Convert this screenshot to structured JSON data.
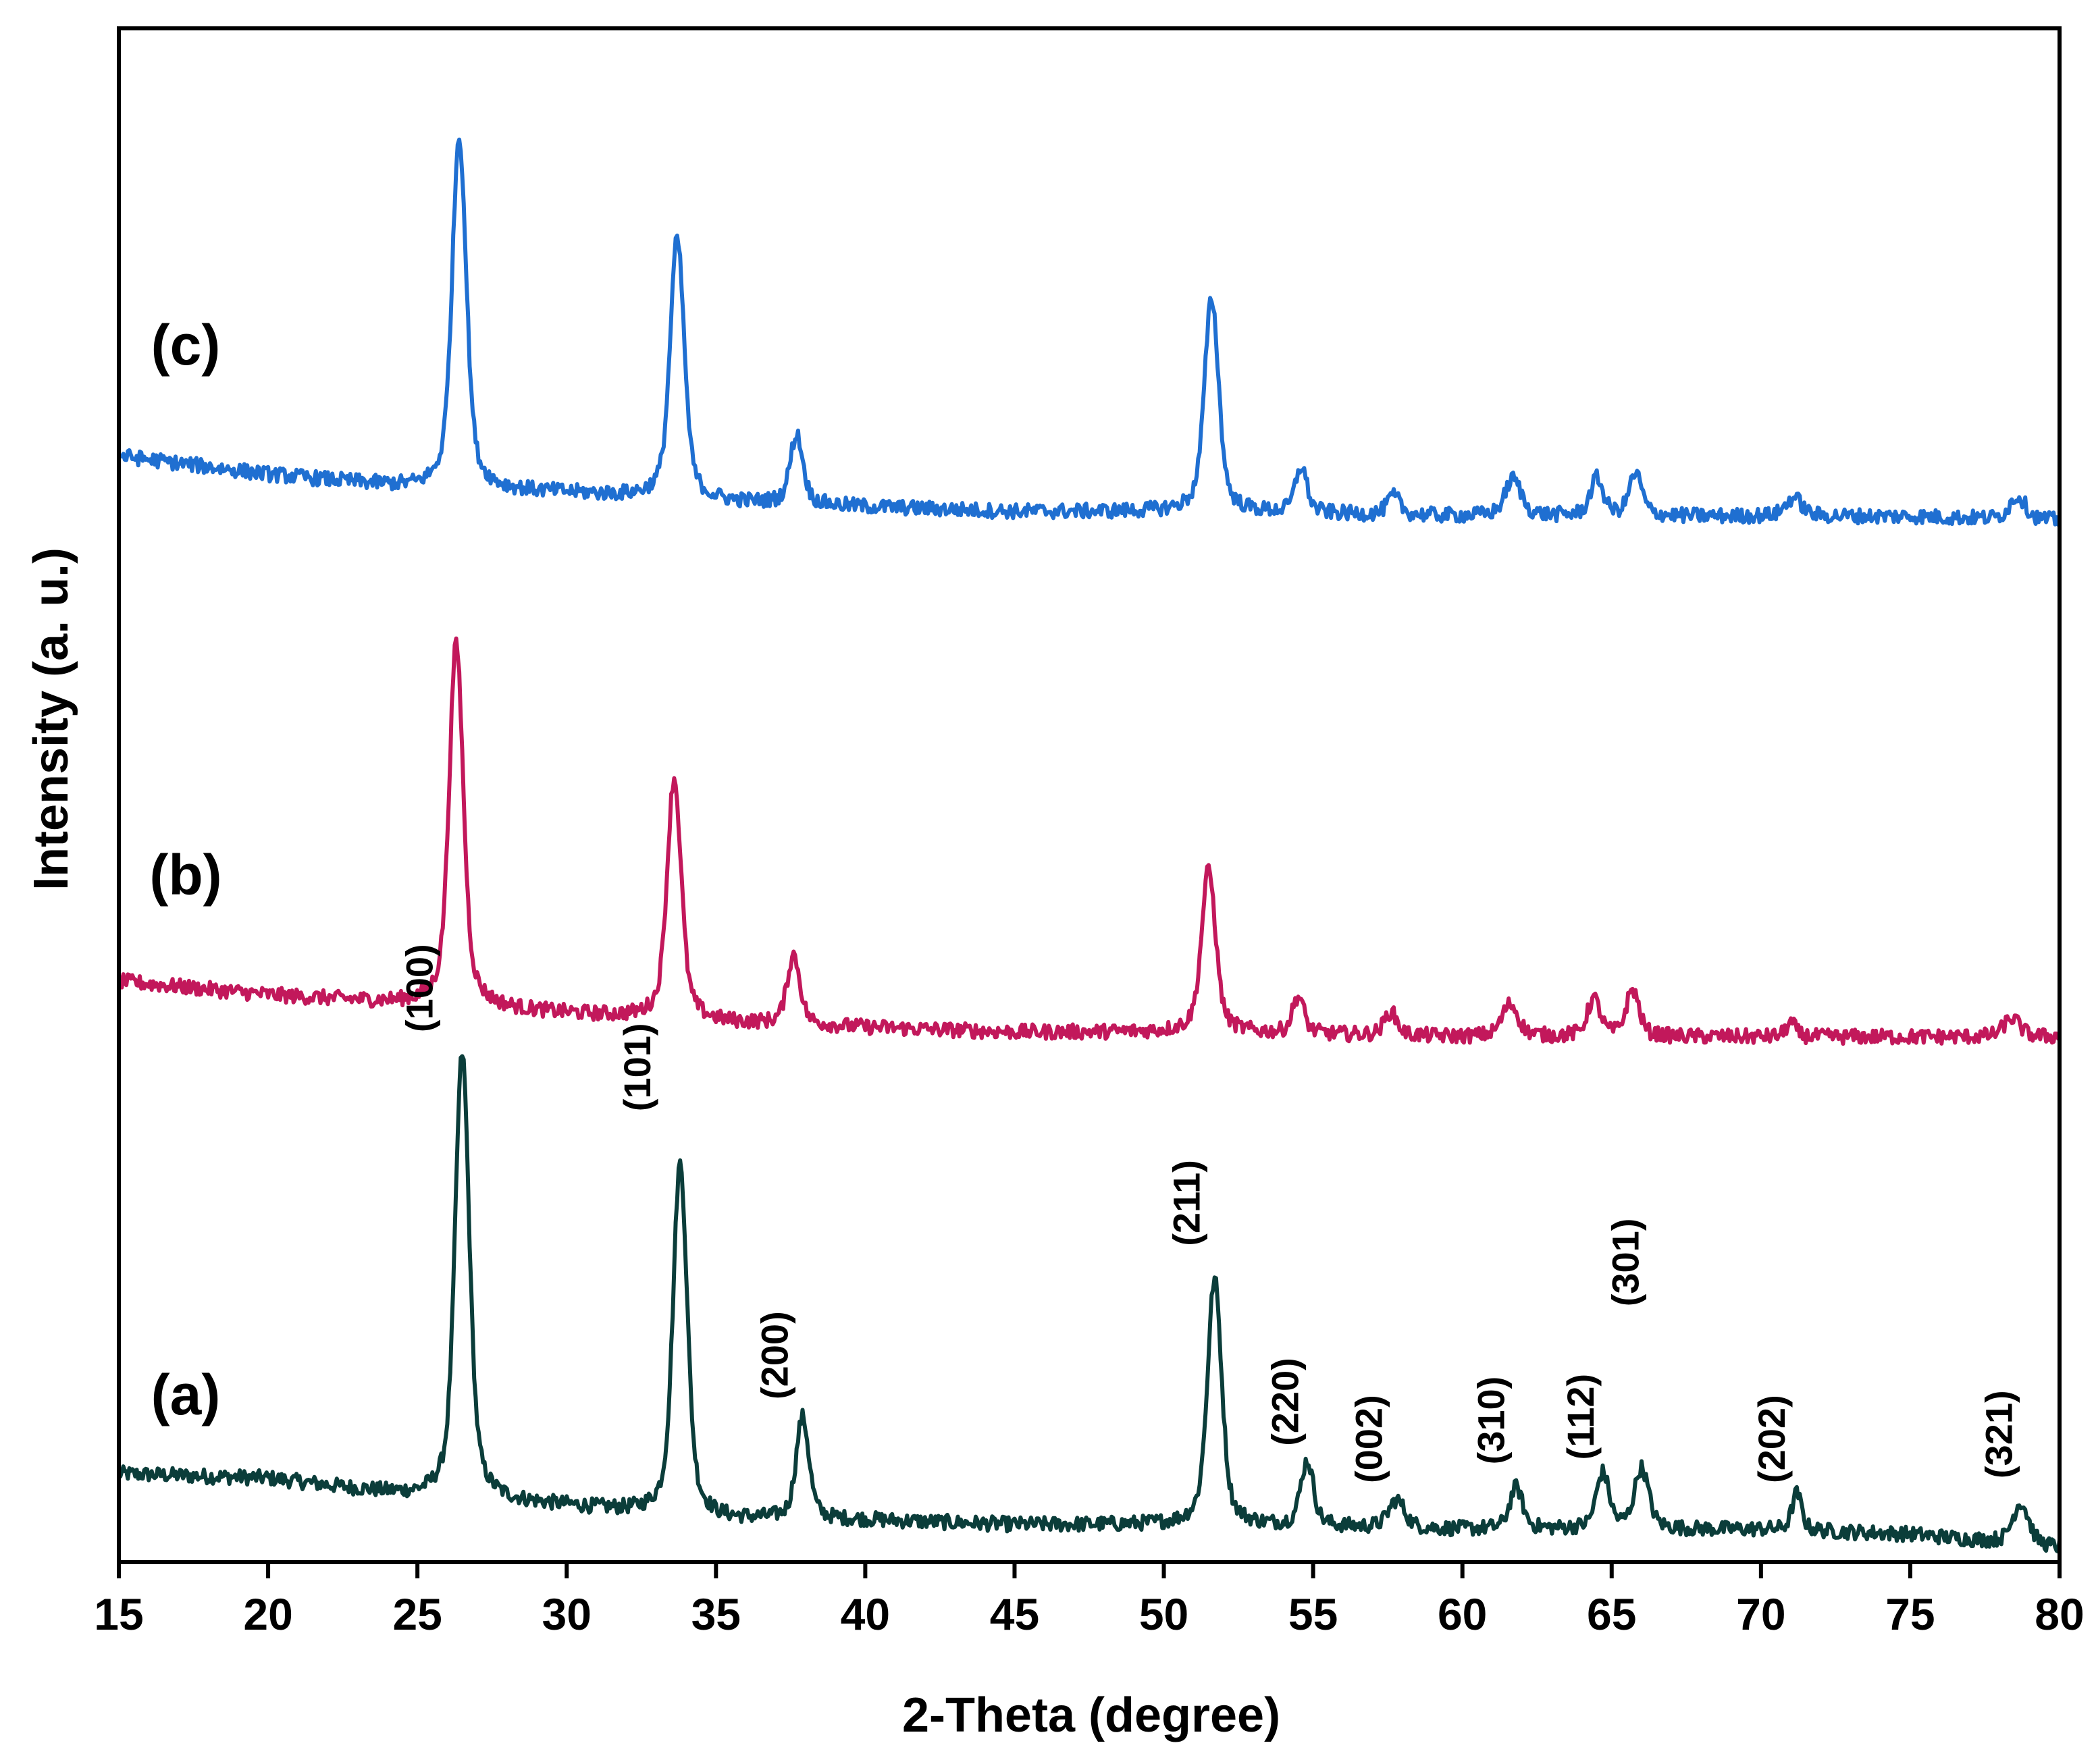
{
  "chart_data": {
    "type": "line",
    "title": "",
    "xlabel": "2-Theta (degree)",
    "ylabel": "Intensity (a. u.)",
    "xlim": [
      15,
      80
    ],
    "ylim": [
      0,
      33
    ],
    "xticks": [
      "15",
      "20",
      "25",
      "30",
      "35",
      "40",
      "45",
      "50",
      "55",
      "60",
      "65",
      "70",
      "75",
      "80"
    ],
    "yticks_shown": false,
    "grid": false,
    "legend": "none",
    "series": [
      {
        "label": "(a)",
        "color": "#0b3d3a",
        "baseline": {
          "x": [
            15,
            20,
            25,
            30,
            35,
            40,
            45,
            50,
            55,
            60,
            65,
            70,
            75,
            80
          ],
          "y": [
            1.9,
            1.8,
            1.4,
            1.2,
            0.9,
            0.9,
            0.8,
            0.8,
            0.75,
            0.7,
            0.7,
            0.7,
            0.6,
            0.3
          ]
        },
        "peaks": [
          {
            "x": 26.5,
            "height": 9.6,
            "width": 0.22
          },
          {
            "x": 33.8,
            "height": 7.6,
            "width": 0.22
          },
          {
            "x": 37.9,
            "height": 2.2,
            "width": 0.2
          },
          {
            "x": 51.7,
            "height": 5.3,
            "width": 0.22
          },
          {
            "x": 54.8,
            "height": 1.4,
            "width": 0.2
          },
          {
            "x": 57.8,
            "height": 0.6,
            "width": 0.25
          },
          {
            "x": 61.8,
            "height": 0.9,
            "width": 0.2
          },
          {
            "x": 64.7,
            "height": 1.2,
            "width": 0.2
          },
          {
            "x": 66.0,
            "height": 1.3,
            "width": 0.22
          },
          {
            "x": 71.2,
            "height": 0.8,
            "width": 0.15
          },
          {
            "x": 78.7,
            "height": 0.9,
            "width": 0.25
          }
        ]
      },
      {
        "label": "(b)",
        "color": "#c2185b",
        "baseline": {
          "x": [
            15,
            20,
            25,
            30,
            35,
            40,
            45,
            50,
            55,
            60,
            65,
            70,
            75,
            80
          ],
          "y": [
            12.5,
            12.2,
            12.0,
            11.8,
            11.6,
            11.5,
            11.4,
            11.4,
            11.35,
            11.3,
            11.3,
            11.3,
            11.3,
            11.3
          ]
        },
        "peaks": [
          {
            "x": 26.3,
            "height": 7.8,
            "width": 0.22
          },
          {
            "x": 33.6,
            "height": 5.2,
            "width": 0.22
          },
          {
            "x": 37.6,
            "height": 1.5,
            "width": 0.2
          },
          {
            "x": 51.5,
            "height": 3.5,
            "width": 0.22
          },
          {
            "x": 54.5,
            "height": 0.8,
            "width": 0.18
          },
          {
            "x": 57.6,
            "height": 0.5,
            "width": 0.2
          },
          {
            "x": 61.6,
            "height": 0.7,
            "width": 0.25
          },
          {
            "x": 64.4,
            "height": 0.8,
            "width": 0.2
          },
          {
            "x": 65.7,
            "height": 1.0,
            "width": 0.2
          },
          {
            "x": 71.0,
            "height": 0.3,
            "width": 0.15
          },
          {
            "x": 78.4,
            "height": 0.4,
            "width": 0.25
          }
        ]
      },
      {
        "label": "(c)",
        "color": "#1f6fd1",
        "baseline": {
          "x": [
            15,
            20,
            25,
            30,
            35,
            40,
            45,
            50,
            55,
            60,
            65,
            70,
            75,
            80
          ],
          "y": [
            23.8,
            23.4,
            23.1,
            23.0,
            22.8,
            22.7,
            22.6,
            22.6,
            22.55,
            22.5,
            22.5,
            22.5,
            22.5,
            22.4
          ]
        },
        "peaks": [
          {
            "x": 26.4,
            "height": 7.6,
            "width": 0.22
          },
          {
            "x": 33.7,
            "height": 5.6,
            "width": 0.22
          },
          {
            "x": 37.7,
            "height": 1.5,
            "width": 0.2
          },
          {
            "x": 51.6,
            "height": 4.6,
            "width": 0.22
          },
          {
            "x": 54.6,
            "height": 1.0,
            "width": 0.18
          },
          {
            "x": 57.7,
            "height": 0.4,
            "width": 0.2
          },
          {
            "x": 61.7,
            "height": 0.8,
            "width": 0.25
          },
          {
            "x": 64.5,
            "height": 0.8,
            "width": 0.2
          },
          {
            "x": 65.8,
            "height": 0.9,
            "width": 0.2
          },
          {
            "x": 71.1,
            "height": 0.4,
            "width": 0.25
          },
          {
            "x": 78.6,
            "height": 0.5,
            "width": 0.25
          }
        ]
      }
    ],
    "annotations": [
      {
        "text": "(100)",
        "x": 25.5,
        "y": 11.4
      },
      {
        "text": "(101)",
        "x": 32.8,
        "y": 9.7
      },
      {
        "text": "(200)",
        "x": 37.4,
        "y": 3.5
      },
      {
        "text": "(211)",
        "x": 51.2,
        "y": 6.8
      },
      {
        "text": "(220)",
        "x": 54.5,
        "y": 2.5
      },
      {
        "text": "(002)",
        "x": 57.3,
        "y": 1.7
      },
      {
        "text": "(310)",
        "x": 61.4,
        "y": 2.1
      },
      {
        "text": "(112)",
        "x": 64.4,
        "y": 2.2
      },
      {
        "text": "(301)",
        "x": 65.9,
        "y": 5.5
      },
      {
        "text": "(202)",
        "x": 70.8,
        "y": 1.7
      },
      {
        "text": "(321)",
        "x": 78.4,
        "y": 1.8
      }
    ]
  }
}
